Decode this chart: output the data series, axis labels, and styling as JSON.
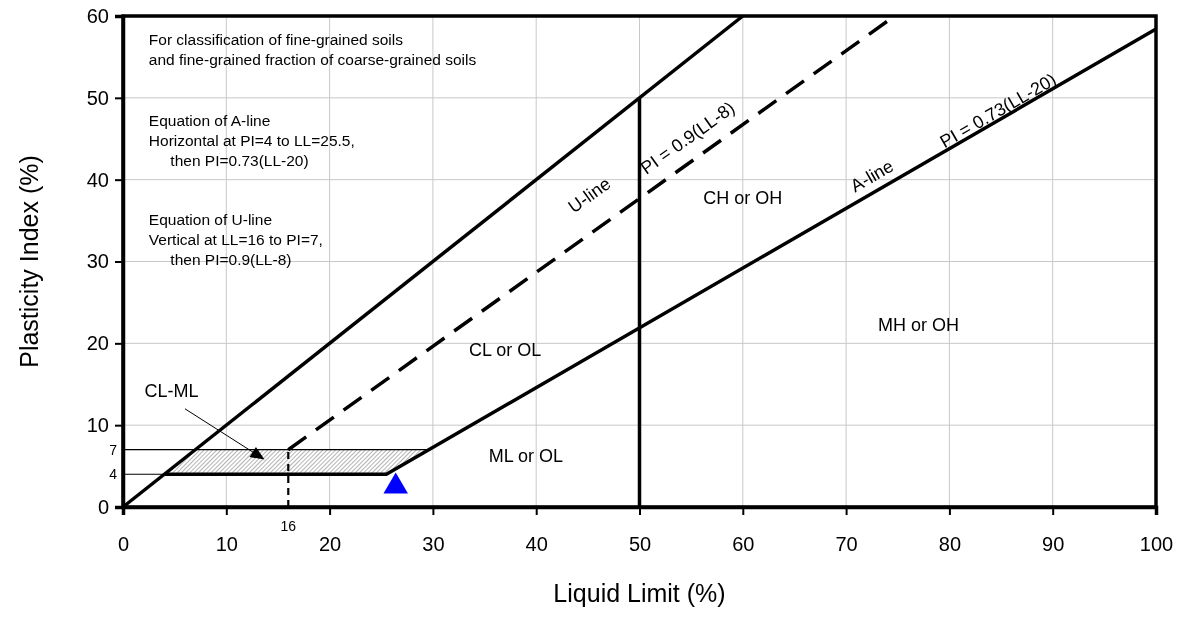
{
  "chart_data": {
    "type": "line",
    "xlabel": "Liquid Limit (%)",
    "ylabel": "Plasticity Index (%)",
    "xlim": [
      0,
      100
    ],
    "xticks": [
      0,
      10,
      20,
      30,
      40,
      50,
      60,
      70,
      80,
      90,
      100
    ],
    "ylim": [
      0,
      60
    ],
    "yticks": [
      0,
      10,
      20,
      30,
      40,
      50,
      60
    ],
    "grid": true,
    "marker": "none",
    "series": [
      {
        "type": "area",
        "color": "#808080",
        "x": [
          4,
          25.5,
          29.6,
          7,
          4
        ],
        "values": [
          4,
          4,
          7,
          7,
          4
        ]
      },
      {
        "type": "line",
        "color": "#000000",
        "x": [
          0,
          60
        ],
        "values": [
          0,
          60
        ]
      },
      {
        "type": "line",
        "color": "#000000",
        "x": [
          4,
          25.5,
          100
        ],
        "values": [
          4,
          4,
          58.4
        ]
      },
      {
        "type": "line",
        "color": "#000000",
        "line_style": "dashed",
        "x": [
          16,
          74.7
        ],
        "values": [
          7,
          60
        ]
      },
      {
        "type": "line",
        "color": "#000000",
        "x": [
          50,
          50
        ],
        "values": [
          0,
          50
        ]
      },
      {
        "type": "line",
        "color": "#000000",
        "x": [
          0,
          29.6
        ],
        "values": [
          7,
          7
        ]
      },
      {
        "type": "line",
        "color": "#000000",
        "x": [
          0,
          4
        ],
        "values": [
          4,
          4
        ]
      },
      {
        "type": "line",
        "color": "#000000",
        "line_style": "dashed",
        "x": [
          16,
          16
        ],
        "values": [
          0,
          7
        ]
      },
      {
        "type": "scatter",
        "color": "#0000ff",
        "marker": "triangle",
        "x": [
          26.4
        ],
        "values": [
          2.5
        ]
      }
    ],
    "annotations": [
      "For classification of fine-grained soils\nand fine-grained fraction of coarse-grained soils",
      "Equation of A-line\nHorizontal at PI=4 to LL=25.5,\n     then PI=0.73(LL-20)",
      "Equation of U-line\nVertical at LL=16 to PI=7,\n     then PI=0.9(LL-8)",
      "U-line",
      "PI = 0.9(LL-8)",
      "A-line",
      "PI = 0.73(LL-20)",
      "CH or OH",
      "MH or OH",
      "CL or OL",
      "ML or OL",
      "CL-ML",
      "7",
      "4",
      "16"
    ]
  }
}
